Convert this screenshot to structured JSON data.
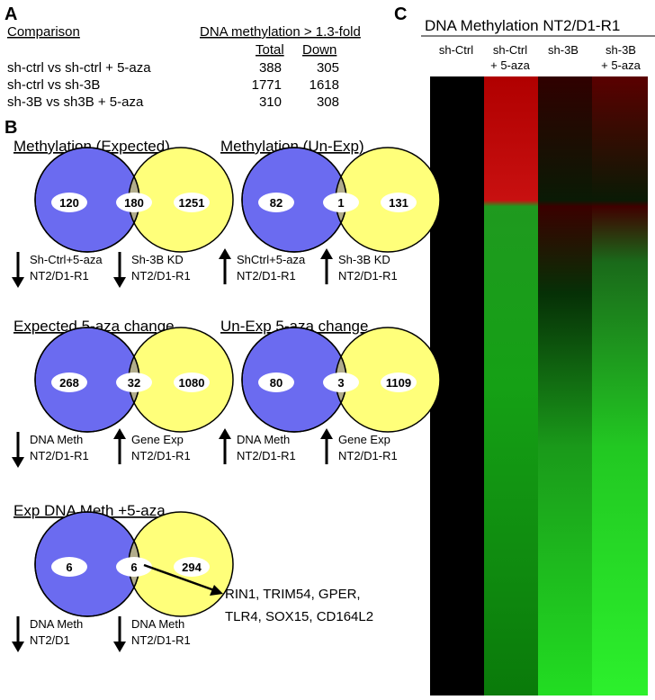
{
  "panel_a": {
    "label": "A",
    "headers": {
      "comparison": "Comparison",
      "group": "DNA methylation  > 1.3-fold",
      "total": "Total",
      "down": "Down"
    },
    "rows": [
      {
        "comparison": "sh-ctrl vs sh-ctrl + 5-aza",
        "total": 388,
        "down": 305
      },
      {
        "comparison": "sh-ctrl vs sh-3B",
        "total": 1771,
        "down": 1618
      },
      {
        "comparison": "sh-3B  vs sh3B + 5-aza",
        "total": 310,
        "down": 308
      }
    ]
  },
  "panel_b": {
    "label": "B",
    "venns": [
      {
        "title": "Methylation (Expected)",
        "counts": [
          120,
          180,
          1251
        ],
        "arrows": [
          {
            "dir": "down",
            "lines": [
              "Sh-Ctrl+5-aza",
              "NT2/D1-R1"
            ]
          },
          {
            "dir": "down",
            "lines": [
              "Sh-3B KD",
              "NT2/D1-R1"
            ]
          }
        ]
      },
      {
        "title": "Methylation (Un-Exp)",
        "counts": [
          82,
          1,
          131
        ],
        "arrows": [
          {
            "dir": "up",
            "lines": [
              "ShCtrl+5-aza",
              "NT2/D1-R1"
            ]
          },
          {
            "dir": "up",
            "lines": [
              "Sh-3B KD",
              "NT2/D1-R1"
            ]
          }
        ]
      },
      {
        "title": "Expected 5-aza change",
        "counts": [
          268,
          32,
          1080
        ],
        "arrows": [
          {
            "dir": "down",
            "lines": [
              "DNA Meth",
              "NT2/D1-R1"
            ]
          },
          {
            "dir": "up",
            "lines": [
              "Gene Exp",
              "NT2/D1-R1"
            ]
          }
        ]
      },
      {
        "title": "Un-Exp 5-aza change",
        "counts": [
          80,
          3,
          1109
        ],
        "arrows": [
          {
            "dir": "up",
            "lines": [
              "DNA Meth",
              "NT2/D1-R1"
            ]
          },
          {
            "dir": "up",
            "lines": [
              "Gene Exp",
              "NT2/D1-R1"
            ]
          }
        ]
      },
      {
        "title": "Exp DNA Meth +5-aza",
        "counts": [
          6,
          6,
          294
        ],
        "arrows": [
          {
            "dir": "down",
            "lines": [
              "DNA Meth",
              "NT2/D1"
            ]
          },
          {
            "dir": "down",
            "lines": [
              "DNA Meth",
              "NT2/D1-R1"
            ]
          }
        ]
      }
    ],
    "gene_list": [
      "RIN1, TRIM54,  GPER,",
      "TLR4, SOX15, CD164L2"
    ]
  },
  "panel_c": {
    "label": "C",
    "title": "DNA Methylation NT2/D1-R1",
    "columns": [
      [
        "sh-Ctrl"
      ],
      [
        "sh-Ctrl",
        "+ 5-aza"
      ],
      [
        "sh-3B"
      ],
      [
        "sh-3B",
        "+ 5-aza"
      ]
    ]
  }
}
